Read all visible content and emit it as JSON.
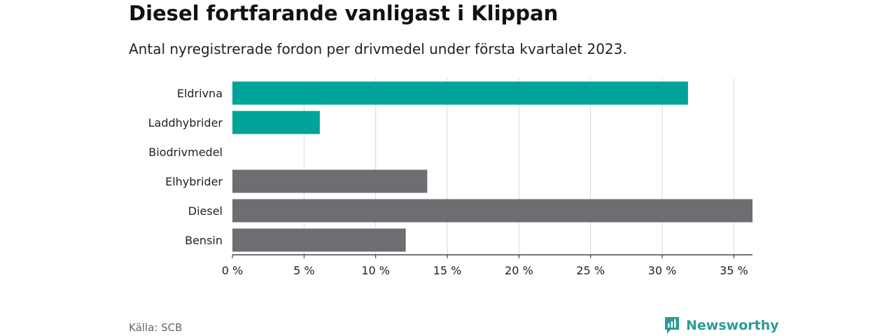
{
  "title": "Diesel fortfarande vanligast i Klippan",
  "subtitle": "Antal nyregistrerade fordon per drivmedel under första kvartalet 2023.",
  "source": "Källa: SCB",
  "brand": "Newsworthy",
  "colors": {
    "highlight": "#00a398",
    "default": "#6e6d72",
    "grid": "#d9d9d9",
    "brand": "#2a9d94"
  },
  "chart_data": {
    "type": "bar",
    "orientation": "horizontal",
    "title": "Diesel fortfarande vanligast i Klippan",
    "subtitle": "Antal nyregistrerade fordon per drivmedel under första kvartalet 2023.",
    "categories": [
      "Eldrivna",
      "Laddhybrider",
      "Biodrivmedel",
      "Elhybrider",
      "Diesel",
      "Bensin"
    ],
    "values": [
      31.8,
      6.1,
      0,
      13.6,
      36.3,
      12.1
    ],
    "highlighted": [
      true,
      true,
      false,
      false,
      false,
      false
    ],
    "xlim": [
      0,
      36.3
    ],
    "xticks": [
      0,
      5,
      10,
      15,
      20,
      25,
      30,
      35
    ],
    "xtick_labels": [
      "0 %",
      "5 %",
      "10 %",
      "15 %",
      "20 %",
      "25 %",
      "30 %",
      "35 %"
    ],
    "grid": true
  }
}
